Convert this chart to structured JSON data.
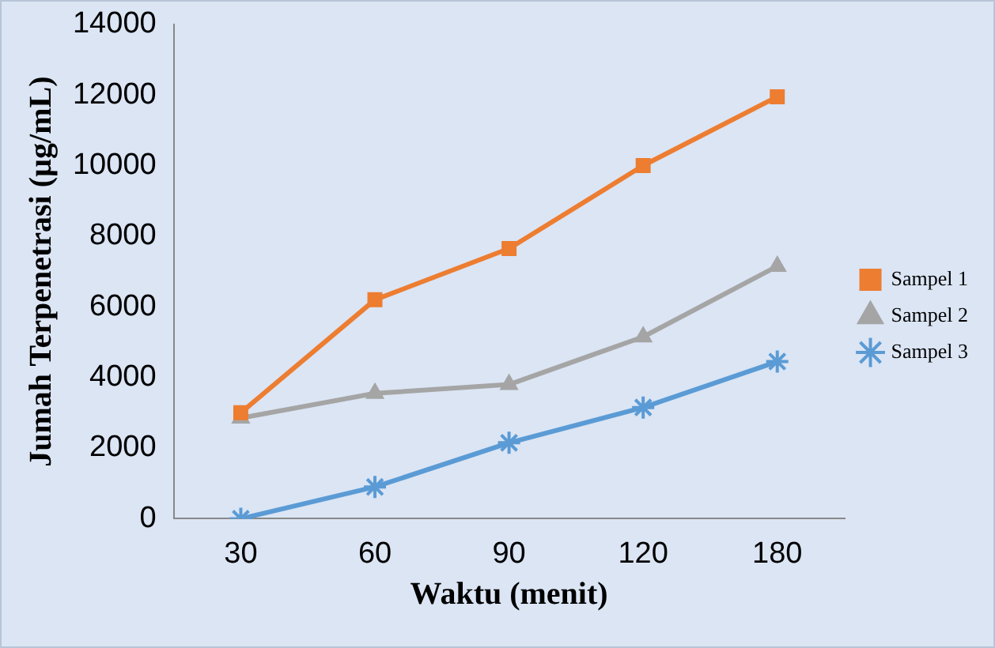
{
  "chart_data": {
    "type": "line",
    "xlabel": "Waktu (menit)",
    "ylabel": "Jumah Terpenetrasi (µg/mL)",
    "categories": [
      "30",
      "60",
      "90",
      "120",
      "180"
    ],
    "series": [
      {
        "name": "Sampel 1",
        "color": "#ed7d31",
        "marker": "square",
        "values": [
          3000,
          6200,
          7650,
          10000,
          11950
        ]
      },
      {
        "name": "Sampel 2",
        "color": "#a5a5a5",
        "marker": "triangle",
        "values": [
          2850,
          3550,
          3800,
          5150,
          7150
        ]
      },
      {
        "name": "Sampel 3",
        "color": "#5b9bd5",
        "marker": "cross",
        "values": [
          0,
          900,
          2150,
          3150,
          4450
        ]
      }
    ],
    "ylim": [
      0,
      14000
    ],
    "yticks": [
      0,
      2000,
      4000,
      6000,
      8000,
      10000,
      12000,
      14000
    ],
    "grid": false,
    "legend": "right",
    "line_style": "solid"
  }
}
